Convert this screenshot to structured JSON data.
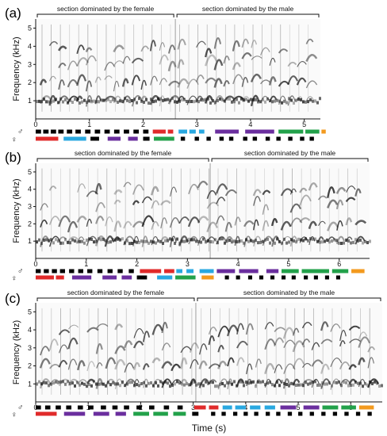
{
  "figure": {
    "x_axis_label": "Time (s)",
    "y_axis_label": "Frequency (kHz)",
    "y_ticks": [
      "1",
      "2",
      "3",
      "4",
      "5"
    ],
    "sex_symbols": {
      "male": "♂",
      "female": "♀"
    }
  },
  "chart_data": [
    {
      "panel": "(a)",
      "type": "heatmap",
      "xlabel": "",
      "ylabel": "Frequency (kHz)",
      "x_ticks": [
        "0",
        "1",
        "2",
        "3",
        "4",
        "5"
      ],
      "y_ticks": [
        "1",
        "2",
        "3",
        "4",
        "5"
      ],
      "xlim": [
        0,
        5.3
      ],
      "ylim": [
        0,
        5.5
      ],
      "sections": [
        {
          "label": "section dominated by the female",
          "start": 0,
          "end": 2.6
        },
        {
          "label": "section dominated by the male",
          "start": 2.6,
          "end": 5.3
        }
      ],
      "syllable_colors": [
        "#000000",
        "#e02a2a",
        "#29a8e0",
        "#6a2e9e",
        "#22a14a",
        "#f39a1e"
      ],
      "note_track_male": [
        [
          0.0,
          0.1,
          "#000000"
        ],
        [
          0.14,
          0.24,
          "#000000"
        ],
        [
          0.28,
          0.38,
          "#000000"
        ],
        [
          0.42,
          0.52,
          "#000000"
        ],
        [
          0.58,
          0.68,
          "#000000"
        ],
        [
          0.74,
          0.84,
          "#000000"
        ],
        [
          0.92,
          1.02,
          "#000000"
        ],
        [
          1.1,
          1.2,
          "#000000"
        ],
        [
          1.28,
          1.38,
          "#000000"
        ],
        [
          1.46,
          1.56,
          "#000000"
        ],
        [
          1.64,
          1.74,
          "#000000"
        ],
        [
          1.82,
          1.92,
          "#000000"
        ],
        [
          2.0,
          2.1,
          "#000000"
        ],
        [
          2.18,
          2.42,
          "#e02a2a"
        ],
        [
          2.46,
          2.56,
          "#e02a2a"
        ],
        [
          2.66,
          2.82,
          "#29a8e0"
        ],
        [
          2.86,
          2.98,
          "#29a8e0"
        ],
        [
          3.04,
          3.14,
          "#29a8e0"
        ],
        [
          3.34,
          3.78,
          "#6a2e9e"
        ],
        [
          3.9,
          4.44,
          "#6a2e9e"
        ],
        [
          4.52,
          4.98,
          "#22a14a"
        ],
        [
          5.02,
          5.28,
          "#22a14a"
        ],
        [
          5.32,
          5.4,
          "#f39a1e"
        ]
      ],
      "note_track_female": [
        [
          0.0,
          0.42,
          "#e02a2a"
        ],
        [
          0.52,
          0.94,
          "#29a8e0"
        ],
        [
          1.02,
          1.18,
          "#000000"
        ],
        [
          1.34,
          1.58,
          "#6a2e9e"
        ],
        [
          1.72,
          1.9,
          "#6a2e9e"
        ],
        [
          2.0,
          2.12,
          "#000000"
        ],
        [
          2.2,
          2.58,
          "#22a14a"
        ],
        [
          2.7,
          2.78,
          "#000000"
        ],
        [
          2.96,
          3.04,
          "#000000"
        ],
        [
          3.18,
          3.26,
          "#000000"
        ],
        [
          3.42,
          3.5,
          "#000000"
        ],
        [
          3.6,
          3.68,
          "#000000"
        ],
        [
          3.86,
          3.94,
          "#000000"
        ],
        [
          4.04,
          4.12,
          "#000000"
        ],
        [
          4.28,
          4.36,
          "#000000"
        ],
        [
          4.48,
          4.56,
          "#000000"
        ],
        [
          4.7,
          4.78,
          "#000000"
        ],
        [
          4.92,
          5.0,
          "#000000"
        ],
        [
          5.1,
          5.18,
          "#000000"
        ]
      ]
    },
    {
      "panel": "(b)",
      "type": "heatmap",
      "xlabel": "",
      "ylabel": "Frequency (kHz)",
      "x_ticks": [
        "0",
        "1",
        "2",
        "3",
        "4",
        "5",
        "6"
      ],
      "y_ticks": [
        "1",
        "2",
        "3",
        "4",
        "5"
      ],
      "xlim": [
        0,
        6.6
      ],
      "ylim": [
        0,
        5.5
      ],
      "sections": [
        {
          "label": "section dominated by the female",
          "start": 0,
          "end": 3.45
        },
        {
          "label": "section dominated by the male",
          "start": 3.45,
          "end": 6.6
        }
      ],
      "syllable_colors": [
        "#000000",
        "#e02a2a",
        "#29a8e0",
        "#6a2e9e",
        "#22a14a",
        "#f39a1e"
      ],
      "note_track_male": [
        [
          0.0,
          0.1,
          "#000000"
        ],
        [
          0.16,
          0.26,
          "#000000"
        ],
        [
          0.32,
          0.42,
          "#000000"
        ],
        [
          0.48,
          0.58,
          "#000000"
        ],
        [
          0.66,
          0.76,
          "#000000"
        ],
        [
          0.84,
          0.94,
          "#000000"
        ],
        [
          1.02,
          1.12,
          "#000000"
        ],
        [
          1.22,
          1.32,
          "#000000"
        ],
        [
          1.42,
          1.52,
          "#000000"
        ],
        [
          1.62,
          1.72,
          "#000000"
        ],
        [
          1.84,
          1.94,
          "#000000"
        ],
        [
          2.06,
          2.48,
          "#e02a2a"
        ],
        [
          2.54,
          2.74,
          "#e02a2a"
        ],
        [
          2.78,
          2.9,
          "#29a8e0"
        ],
        [
          2.98,
          3.12,
          "#29a8e0"
        ],
        [
          3.24,
          3.52,
          "#29a8e0"
        ],
        [
          3.58,
          3.94,
          "#6a2e9e"
        ],
        [
          4.02,
          4.4,
          "#6a2e9e"
        ],
        [
          4.56,
          4.8,
          "#6a2e9e"
        ],
        [
          4.86,
          5.2,
          "#22a14a"
        ],
        [
          5.26,
          5.8,
          "#22a14a"
        ],
        [
          5.86,
          6.18,
          "#22a14a"
        ],
        [
          6.24,
          6.5,
          "#f39a1e"
        ]
      ],
      "note_track_female": [
        [
          0.0,
          0.36,
          "#e02a2a"
        ],
        [
          0.4,
          0.56,
          "#e02a2a"
        ],
        [
          0.72,
          1.1,
          "#6a2e9e"
        ],
        [
          1.32,
          1.6,
          "#6a2e9e"
        ],
        [
          1.7,
          1.9,
          "#6a2e9e"
        ],
        [
          2.0,
          2.2,
          "#000000"
        ],
        [
          2.4,
          2.7,
          "#29a8e0"
        ],
        [
          2.76,
          3.16,
          "#22a14a"
        ],
        [
          3.28,
          3.52,
          "#f39a1e"
        ],
        [
          3.74,
          3.82,
          "#000000"
        ],
        [
          3.96,
          4.04,
          "#000000"
        ],
        [
          4.2,
          4.28,
          "#000000"
        ],
        [
          4.42,
          4.5,
          "#000000"
        ],
        [
          4.64,
          4.72,
          "#000000"
        ],
        [
          4.86,
          4.94,
          "#000000"
        ],
        [
          5.06,
          5.14,
          "#000000"
        ],
        [
          5.3,
          5.38,
          "#000000"
        ],
        [
          5.5,
          5.58,
          "#000000"
        ],
        [
          5.72,
          5.8,
          "#000000"
        ],
        [
          5.94,
          6.02,
          "#000000"
        ]
      ]
    },
    {
      "panel": "(c)",
      "type": "heatmap",
      "xlabel": "Time (s)",
      "ylabel": "Frequency (kHz)",
      "x_ticks": [
        "0",
        "1",
        "2",
        "3",
        "4",
        "5",
        "6"
      ],
      "y_ticks": [
        "1",
        "2",
        "3",
        "4",
        "5"
      ],
      "xlim": [
        0,
        6.6
      ],
      "ylim": [
        0,
        5.5
      ],
      "sections": [
        {
          "label": "section dominated by the female",
          "start": 0,
          "end": 3.05
        },
        {
          "label": "section dominated by the male",
          "start": 3.05,
          "end": 6.6
        }
      ],
      "syllable_colors": [
        "#000000",
        "#e02a2a",
        "#29a8e0",
        "#6a2e9e",
        "#22a14a",
        "#f39a1e"
      ],
      "note_track_male": [
        [
          0.0,
          0.1,
          "#000000"
        ],
        [
          0.18,
          0.28,
          "#000000"
        ],
        [
          0.38,
          0.48,
          "#000000"
        ],
        [
          0.58,
          0.68,
          "#000000"
        ],
        [
          0.8,
          0.9,
          "#000000"
        ],
        [
          1.0,
          1.1,
          "#000000"
        ],
        [
          1.24,
          1.34,
          "#000000"
        ],
        [
          1.46,
          1.56,
          "#000000"
        ],
        [
          1.68,
          1.78,
          "#000000"
        ],
        [
          1.92,
          2.02,
          "#000000"
        ],
        [
          2.16,
          2.26,
          "#000000"
        ],
        [
          2.44,
          2.54,
          "#000000"
        ],
        [
          2.7,
          2.8,
          "#000000"
        ],
        [
          3.02,
          3.24,
          "#e02a2a"
        ],
        [
          3.3,
          3.48,
          "#e02a2a"
        ],
        [
          3.56,
          3.74,
          "#29a8e0"
        ],
        [
          3.8,
          4.0,
          "#29a8e0"
        ],
        [
          4.08,
          4.28,
          "#29a8e0"
        ],
        [
          4.36,
          4.56,
          "#29a8e0"
        ],
        [
          4.66,
          4.96,
          "#6a2e9e"
        ],
        [
          5.1,
          5.4,
          "#6a2e9e"
        ],
        [
          5.46,
          5.76,
          "#22a14a"
        ],
        [
          5.82,
          6.1,
          "#22a14a"
        ],
        [
          6.16,
          6.44,
          "#f39a1e"
        ]
      ],
      "note_track_female": [
        [
          0.0,
          0.4,
          "#e02a2a"
        ],
        [
          0.54,
          0.94,
          "#6a2e9e"
        ],
        [
          1.1,
          1.4,
          "#6a2e9e"
        ],
        [
          1.52,
          1.72,
          "#6a2e9e"
        ],
        [
          1.86,
          2.16,
          "#22a14a"
        ],
        [
          2.24,
          2.52,
          "#22a14a"
        ],
        [
          2.62,
          2.86,
          "#22a14a"
        ],
        [
          2.98,
          3.1,
          "#000000"
        ],
        [
          3.34,
          3.42,
          "#000000"
        ],
        [
          3.54,
          3.62,
          "#000000"
        ],
        [
          3.76,
          3.84,
          "#000000"
        ],
        [
          3.96,
          4.04,
          "#000000"
        ],
        [
          4.16,
          4.24,
          "#000000"
        ],
        [
          4.38,
          4.46,
          "#000000"
        ],
        [
          4.58,
          4.66,
          "#000000"
        ],
        [
          4.8,
          4.88,
          "#000000"
        ],
        [
          5.0,
          5.08,
          "#000000"
        ],
        [
          5.22,
          5.3,
          "#000000"
        ],
        [
          5.44,
          5.52,
          "#000000"
        ],
        [
          5.66,
          5.74,
          "#000000"
        ],
        [
          5.88,
          5.96,
          "#000000"
        ],
        [
          6.1,
          6.18,
          "#000000"
        ],
        [
          6.32,
          6.4,
          "#000000"
        ]
      ]
    }
  ]
}
